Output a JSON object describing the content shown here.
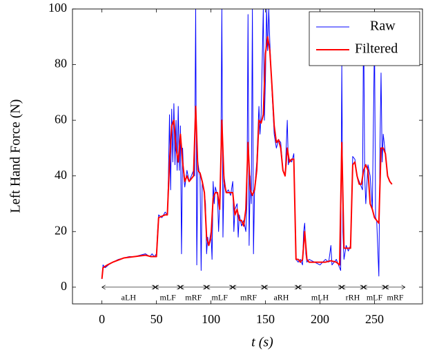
{
  "chart_data": {
    "type": "line",
    "xlabel": "t (s)",
    "ylabel": "Left Hand Force (N)",
    "xlim": [
      -27,
      294
    ],
    "ylim": [
      -6,
      100
    ],
    "xticks": [
      0,
      50,
      100,
      150,
      200,
      250
    ],
    "yticks": [
      0,
      20,
      40,
      60,
      80,
      100
    ],
    "legend": "north east",
    "series": [
      {
        "name": "Raw",
        "color": "#0000ff",
        "width": 1,
        "x": [
          0,
          1,
          3,
          6,
          10,
          15,
          20,
          25,
          30,
          35,
          40,
          44,
          46,
          48,
          50,
          51,
          52,
          55,
          58,
          60,
          61,
          62,
          63,
          64,
          65,
          66,
          67,
          68,
          69,
          70,
          71,
          72,
          73,
          74,
          75,
          76,
          78,
          80,
          82,
          84,
          85,
          86,
          87,
          88,
          89,
          90,
          91,
          92,
          94,
          95,
          96,
          97,
          98,
          100,
          101,
          102,
          103,
          104,
          106,
          107,
          108,
          109,
          110,
          111,
          112,
          114,
          116,
          118,
          120,
          121,
          122,
          124,
          125,
          126,
          128,
          130,
          132,
          133,
          134,
          135,
          136,
          137,
          138,
          139,
          140,
          142,
          144,
          145,
          146,
          148,
          149,
          150,
          151,
          152,
          153,
          154,
          156,
          158,
          160,
          162,
          164,
          166,
          168,
          170,
          171,
          172,
          174,
          176,
          177,
          178,
          180,
          182,
          184,
          185,
          186,
          187,
          188,
          190,
          195,
          200,
          205,
          208,
          210,
          211,
          215,
          218,
          219,
          220,
          221,
          222,
          224,
          226,
          228,
          229,
          230,
          232,
          234,
          236,
          238,
          239,
          240,
          241,
          242,
          244,
          246,
          248,
          250,
          251,
          252,
          254,
          255,
          256,
          257,
          258,
          260,
          262,
          264,
          266
        ],
        "values": [
          3,
          8,
          7,
          8,
          9,
          10,
          10.5,
          11,
          11,
          11.5,
          12,
          11,
          12,
          11,
          12,
          20,
          26,
          25,
          27,
          26,
          40,
          62,
          35,
          64,
          45,
          66,
          44,
          60,
          42,
          65,
          42,
          58,
          12,
          50,
          40,
          36,
          42,
          38,
          40,
          42,
          40,
          100,
          8,
          45,
          42,
          40,
          6,
          38,
          34,
          30,
          12,
          18,
          15,
          20,
          10,
          38,
          30,
          36,
          33,
          20,
          30,
          40,
          100,
          18,
          40,
          34,
          35,
          33,
          38,
          20,
          28,
          30,
          18,
          26,
          22,
          24,
          20,
          30,
          98,
          15,
          40,
          30,
          100,
          12,
          35,
          45,
          65,
          55,
          62,
          100,
          60,
          75,
          100,
          85,
          100,
          88,
          70,
          55,
          50,
          53,
          52,
          42,
          40,
          60,
          44,
          46,
          45,
          48,
          30,
          10,
          9,
          10,
          8,
          20,
          23,
          12,
          9,
          10,
          9,
          8,
          10,
          9,
          15,
          8,
          10,
          7,
          6,
          80,
          20,
          10,
          15,
          13,
          15,
          30,
          47,
          46,
          40,
          38,
          36,
          35,
          98,
          40,
          30,
          44,
          40,
          28,
          90,
          25,
          24,
          4,
          50,
          77,
          45,
          55,
          48,
          40,
          38,
          37
        ]
      },
      {
        "name": "Filtered",
        "color": "#ff0000",
        "width": 2,
        "x": [
          0,
          1,
          5,
          10,
          20,
          30,
          40,
          45,
          50,
          52,
          58,
          60,
          62,
          64,
          66,
          68,
          70,
          72,
          74,
          76,
          78,
          80,
          84,
          86,
          88,
          90,
          92,
          94,
          96,
          98,
          100,
          102,
          104,
          106,
          108,
          110,
          112,
          114,
          116,
          120,
          122,
          124,
          126,
          128,
          130,
          132,
          134,
          136,
          138,
          140,
          142,
          144,
          146,
          148,
          150,
          152,
          154,
          156,
          158,
          160,
          162,
          164,
          166,
          168,
          170,
          172,
          174,
          176,
          178,
          180,
          182,
          184,
          186,
          188,
          190,
          195,
          200,
          205,
          210,
          215,
          218,
          220,
          222,
          226,
          228,
          230,
          232,
          234,
          236,
          238,
          240,
          242,
          244,
          246,
          248,
          250,
          252,
          254,
          256,
          258,
          260,
          262,
          264,
          266
        ],
        "values": [
          3,
          7,
          8,
          9,
          10.5,
          11,
          11.5,
          11,
          11,
          25,
          26,
          26,
          45,
          58,
          60,
          50,
          45,
          55,
          45,
          38,
          40,
          38,
          40,
          65,
          42,
          41,
          38,
          34,
          18,
          15,
          18,
          32,
          34,
          34,
          28,
          60,
          38,
          34,
          34,
          34,
          26,
          28,
          24,
          24,
          22,
          28,
          52,
          35,
          33,
          35,
          42,
          60,
          59,
          62,
          84,
          90,
          85,
          72,
          58,
          52,
          53,
          50,
          42,
          40,
          50,
          45,
          46,
          46,
          10,
          10,
          9,
          10,
          20,
          10,
          9,
          9,
          9,
          9,
          9.5,
          9,
          8,
          52,
          14,
          14,
          14,
          44,
          45,
          40,
          37,
          37,
          42,
          44,
          42,
          30,
          28,
          25,
          24,
          23,
          50,
          50,
          48,
          40,
          38,
          37
        ]
      }
    ],
    "segment_y": 0,
    "segments": [
      {
        "label": "aLH",
        "start": 0,
        "end": 49
      },
      {
        "label": "mLF",
        "start": 49,
        "end": 72
      },
      {
        "label": "mRF",
        "start": 72,
        "end": 96
      },
      {
        "label": "mLF",
        "start": 96,
        "end": 120
      },
      {
        "label": "mRF",
        "start": 120,
        "end": 149
      },
      {
        "label": "aRH",
        "start": 149,
        "end": 180
      },
      {
        "label": "mLH",
        "start": 180,
        "end": 220
      },
      {
        "label": "rRH",
        "start": 220,
        "end": 240
      },
      {
        "label": "mLF",
        "start": 240,
        "end": 260
      },
      {
        "label": "mRF",
        "start": 260,
        "end": 278
      }
    ]
  }
}
